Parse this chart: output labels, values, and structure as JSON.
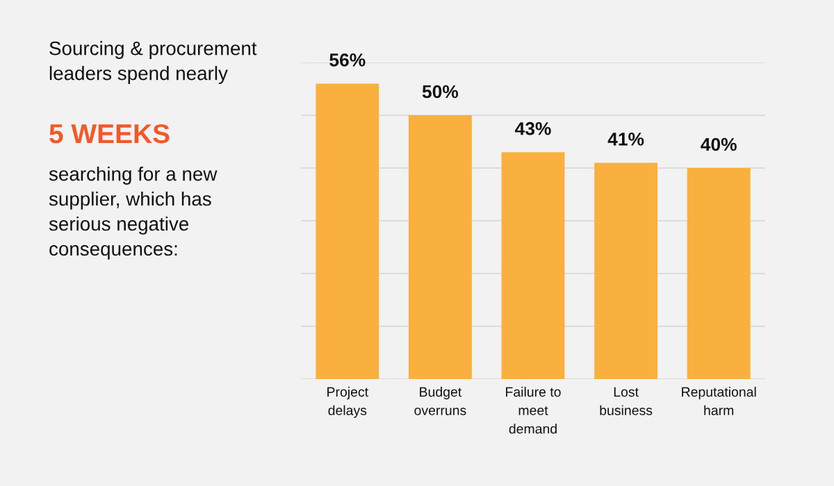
{
  "chart_data": {
    "type": "bar",
    "title": "Sourcing & procurement leaders spend nearly",
    "subtitle": "5 WEEKS",
    "annotations": [
      "searching for a new supplier, which has serious negative consequences:"
    ],
    "categories": [
      "Project delays",
      "Budget overruns",
      "Failure to meet demand",
      "Lost business",
      "Reputational harm"
    ],
    "values": [
      56,
      50,
      43,
      41,
      40
    ],
    "color": "#f9b03e",
    "data_labels": true,
    "value_labels": [
      "56%",
      "50%",
      "43%",
      "41%",
      "40%"
    ],
    "ylim": [
      0,
      60
    ],
    "yticks": [
      {
        "value": 0,
        "label": null
      },
      {
        "value": 10,
        "label": null
      },
      {
        "value": 20,
        "label": null
      },
      {
        "value": 30,
        "label": null
      },
      {
        "value": 40,
        "label": null
      },
      {
        "value": 50,
        "label": null
      },
      {
        "value": 60,
        "label": null
      }
    ],
    "grid": "y",
    "tick_labels": "x"
  }
}
